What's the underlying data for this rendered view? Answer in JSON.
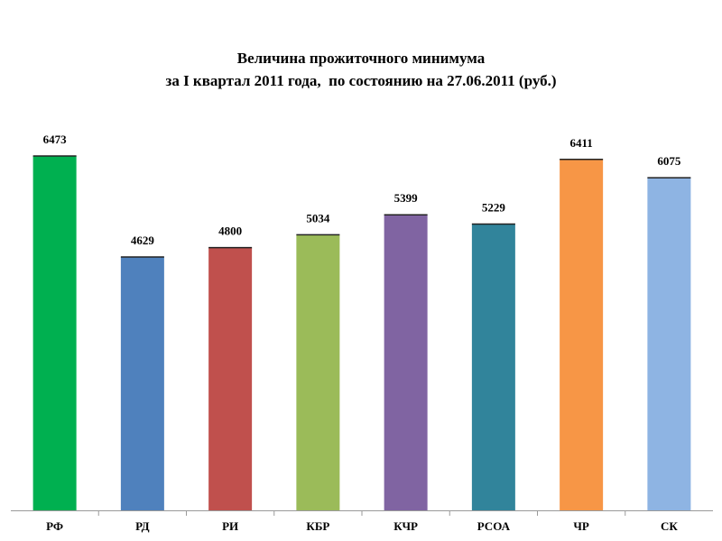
{
  "chart_data": {
    "type": "bar",
    "title_lines": [
      "Величина прожиточного минимума",
      "за I квартал 2011 года,  по состоянию на 27.06.2011 (руб.)"
    ],
    "categories": [
      "РФ",
      "РД",
      "РИ",
      "КБР",
      "КЧР",
      "РСОА",
      "ЧР",
      "СК"
    ],
    "values": [
      6473,
      4629,
      4800,
      5034,
      5399,
      5229,
      6411,
      6075
    ],
    "colors": [
      "#00B050",
      "#4F81BD",
      "#C0504D",
      "#9BBB59",
      "#8064A2",
      "#31849B",
      "#F79646",
      "#8EB4E3"
    ],
    "ylim": [
      0,
      7000
    ],
    "grid": false,
    "legend": "none"
  }
}
